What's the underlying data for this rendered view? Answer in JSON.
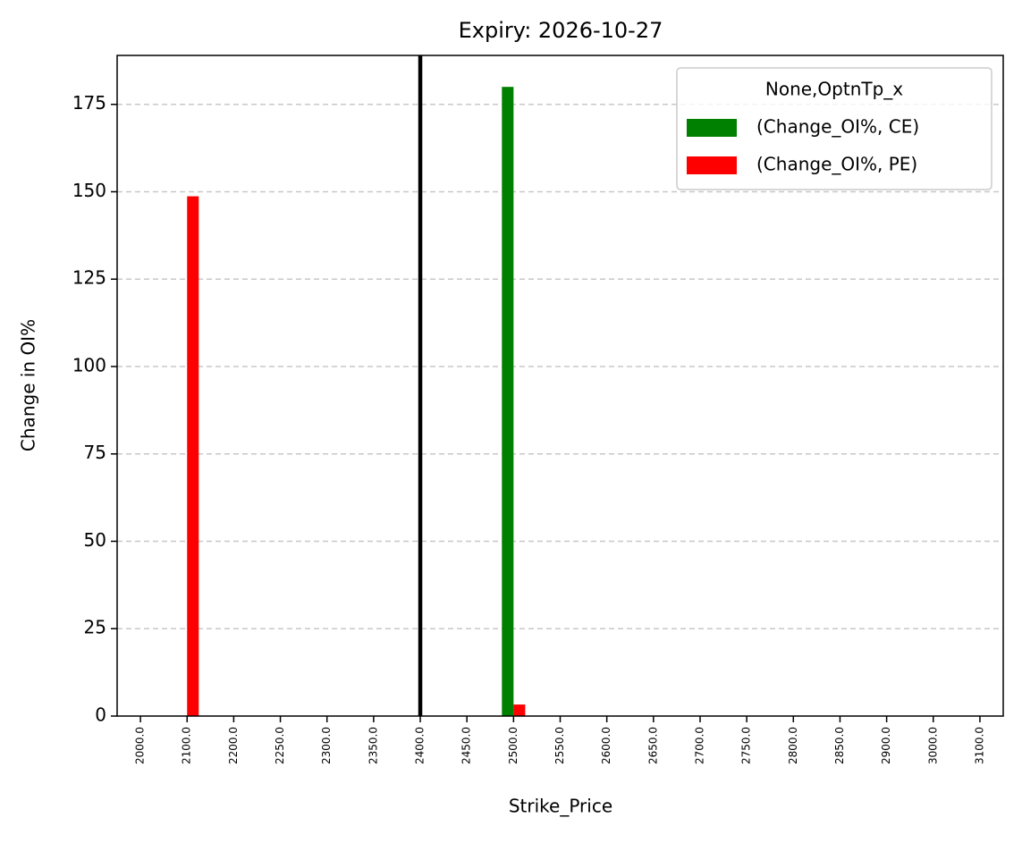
{
  "chart_data": {
    "type": "bar",
    "title": "Expiry: 2026-10-27",
    "xlabel": "Strike_Price",
    "ylabel": "Change in OI%",
    "categories": [
      "2000.0",
      "2100.0",
      "2200.0",
      "2250.0",
      "2300.0",
      "2350.0",
      "2400.0",
      "2450.0",
      "2500.0",
      "2550.0",
      "2600.0",
      "2650.0",
      "2700.0",
      "2750.0",
      "2800.0",
      "2850.0",
      "2900.0",
      "3000.0",
      "3100.0"
    ],
    "series": [
      {
        "name": "(Change_OI%, CE)",
        "color": "#008000",
        "values": [
          0,
          0,
          0,
          0,
          0,
          0,
          0,
          0,
          180,
          0,
          0,
          0,
          0,
          0,
          0,
          0,
          0,
          0,
          0
        ]
      },
      {
        "name": "(Change_OI%, PE)",
        "color": "#ff0000",
        "values": [
          0,
          148.7,
          0,
          0,
          0,
          0,
          0,
          0,
          3.3,
          0,
          0,
          0,
          0,
          0,
          0,
          0,
          0,
          0,
          0
        ]
      }
    ],
    "ylim": [
      0,
      189
    ],
    "yticks": [
      0,
      25,
      50,
      75,
      100,
      125,
      150,
      175
    ],
    "grid": true,
    "legend_title": "None,OptnTp_x",
    "legend_loc": "upper right",
    "vline_x": 6,
    "vline_color": "#000000"
  }
}
